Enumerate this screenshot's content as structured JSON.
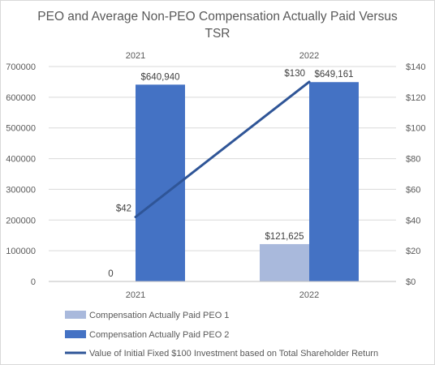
{
  "chart_data": {
    "type": "bar",
    "title_line1": "PEO and Average Non-PEO Compensation Actually Paid Versus",
    "title_line2": "TSR",
    "categories": [
      "2021",
      "2022"
    ],
    "top_categories": [
      "2021",
      "2022"
    ],
    "left_axis": {
      "ylim": [
        0,
        700000
      ],
      "ticks": [
        "0",
        "100000",
        "200000",
        "300000",
        "400000",
        "500000",
        "600000",
        "700000"
      ]
    },
    "right_axis": {
      "ylim": [
        0,
        140
      ],
      "ticks": [
        "$0",
        "$20",
        "$40",
        "$60",
        "$80",
        "$100",
        "$120",
        "$140"
      ]
    },
    "series": [
      {
        "name": "Compensation Actually Paid PEO 1",
        "type": "bar",
        "axis": "left",
        "color": "#a9b9dc",
        "values": [
          0,
          121625
        ],
        "labels": [
          "0",
          "$121,625"
        ]
      },
      {
        "name": "Compensation Actually Paid PEO 2",
        "type": "bar",
        "axis": "left",
        "color": "#4472c4",
        "values": [
          640940,
          649161
        ],
        "labels": [
          "$640,940",
          "$649,161"
        ]
      },
      {
        "name": "Value of Initial Fixed $100 Investment based on Total Shareholder Return",
        "type": "line",
        "axis": "right",
        "color": "#2f5597",
        "values": [
          42,
          130
        ],
        "labels": [
          "$42",
          "$130"
        ]
      }
    ],
    "grid": true,
    "legend_position": "bottom"
  }
}
